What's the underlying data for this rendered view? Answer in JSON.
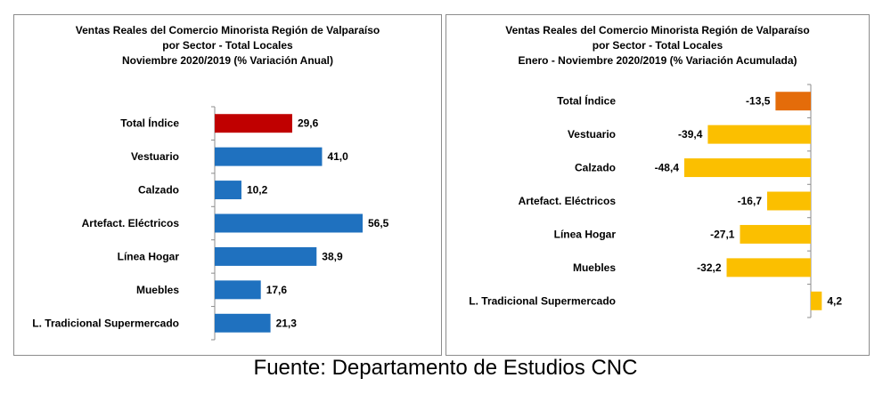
{
  "source": "Fuente: Departamento de Estudios CNC",
  "charts": [
    {
      "title_lines": [
        "Ventas Reales del Comercio Minorista Región de Valparaíso",
        "por Sector - Total Locales",
        "Noviembre 2020/2019  (% Variación Anual)"
      ]
    },
    {
      "title_lines": [
        "Ventas Reales del Comercio Minorista Región de Valparaíso",
        "por Sector   - Total Locales",
        "Enero - Noviembre  2020/2019 (% Variación Acumulada)"
      ]
    }
  ],
  "chart_data": [
    {
      "type": "bar",
      "orientation": "horizontal",
      "title": "Ventas Reales del Comercio Minorista Región de Valparaíso por Sector - Total Locales Noviembre 2020/2019  (% Variación Anual)",
      "categories": [
        "Total Índice",
        "Vestuario",
        "Calzado",
        "Artefact. Eléctricos",
        "Línea Hogar",
        "Muebles",
        "L. Tradicional Supermercado"
      ],
      "values": [
        29.6,
        41.0,
        10.2,
        56.5,
        38.9,
        17.6,
        21.3
      ],
      "labels": [
        "29,6",
        "41,0",
        "10,2",
        "56,5",
        "38,9",
        "17,6",
        "21,3"
      ],
      "colors": [
        "#c00000",
        "#1f71bf",
        "#1f71bf",
        "#1f71bf",
        "#1f71bf",
        "#1f71bf",
        "#1f71bf"
      ],
      "xlim": [
        0,
        60
      ],
      "grid": false
    },
    {
      "type": "bar",
      "orientation": "horizontal",
      "title": "Ventas Reales del Comercio Minorista Región de Valparaíso por Sector   - Total Locales Enero - Noviembre  2020/2019 (% Variación Acumulada)",
      "categories": [
        "Total Índice",
        "Vestuario",
        "Calzado",
        "Artefact. Eléctricos",
        "Línea Hogar",
        "Muebles",
        "L. Tradicional Supermercado"
      ],
      "values": [
        -13.5,
        -39.4,
        -48.4,
        -16.7,
        -27.1,
        -32.2,
        4.2
      ],
      "labels": [
        "-13,5",
        "-39,4",
        "-48,4",
        "-16,7",
        "-27,1",
        "-32,2",
        "4,2"
      ],
      "colors": [
        "#e46c0a",
        "#fbbf00",
        "#fbbf00",
        "#fbbf00",
        "#fbbf00",
        "#fbbf00",
        "#fbbf00"
      ],
      "xlim": [
        -50,
        5
      ],
      "grid": false
    }
  ]
}
